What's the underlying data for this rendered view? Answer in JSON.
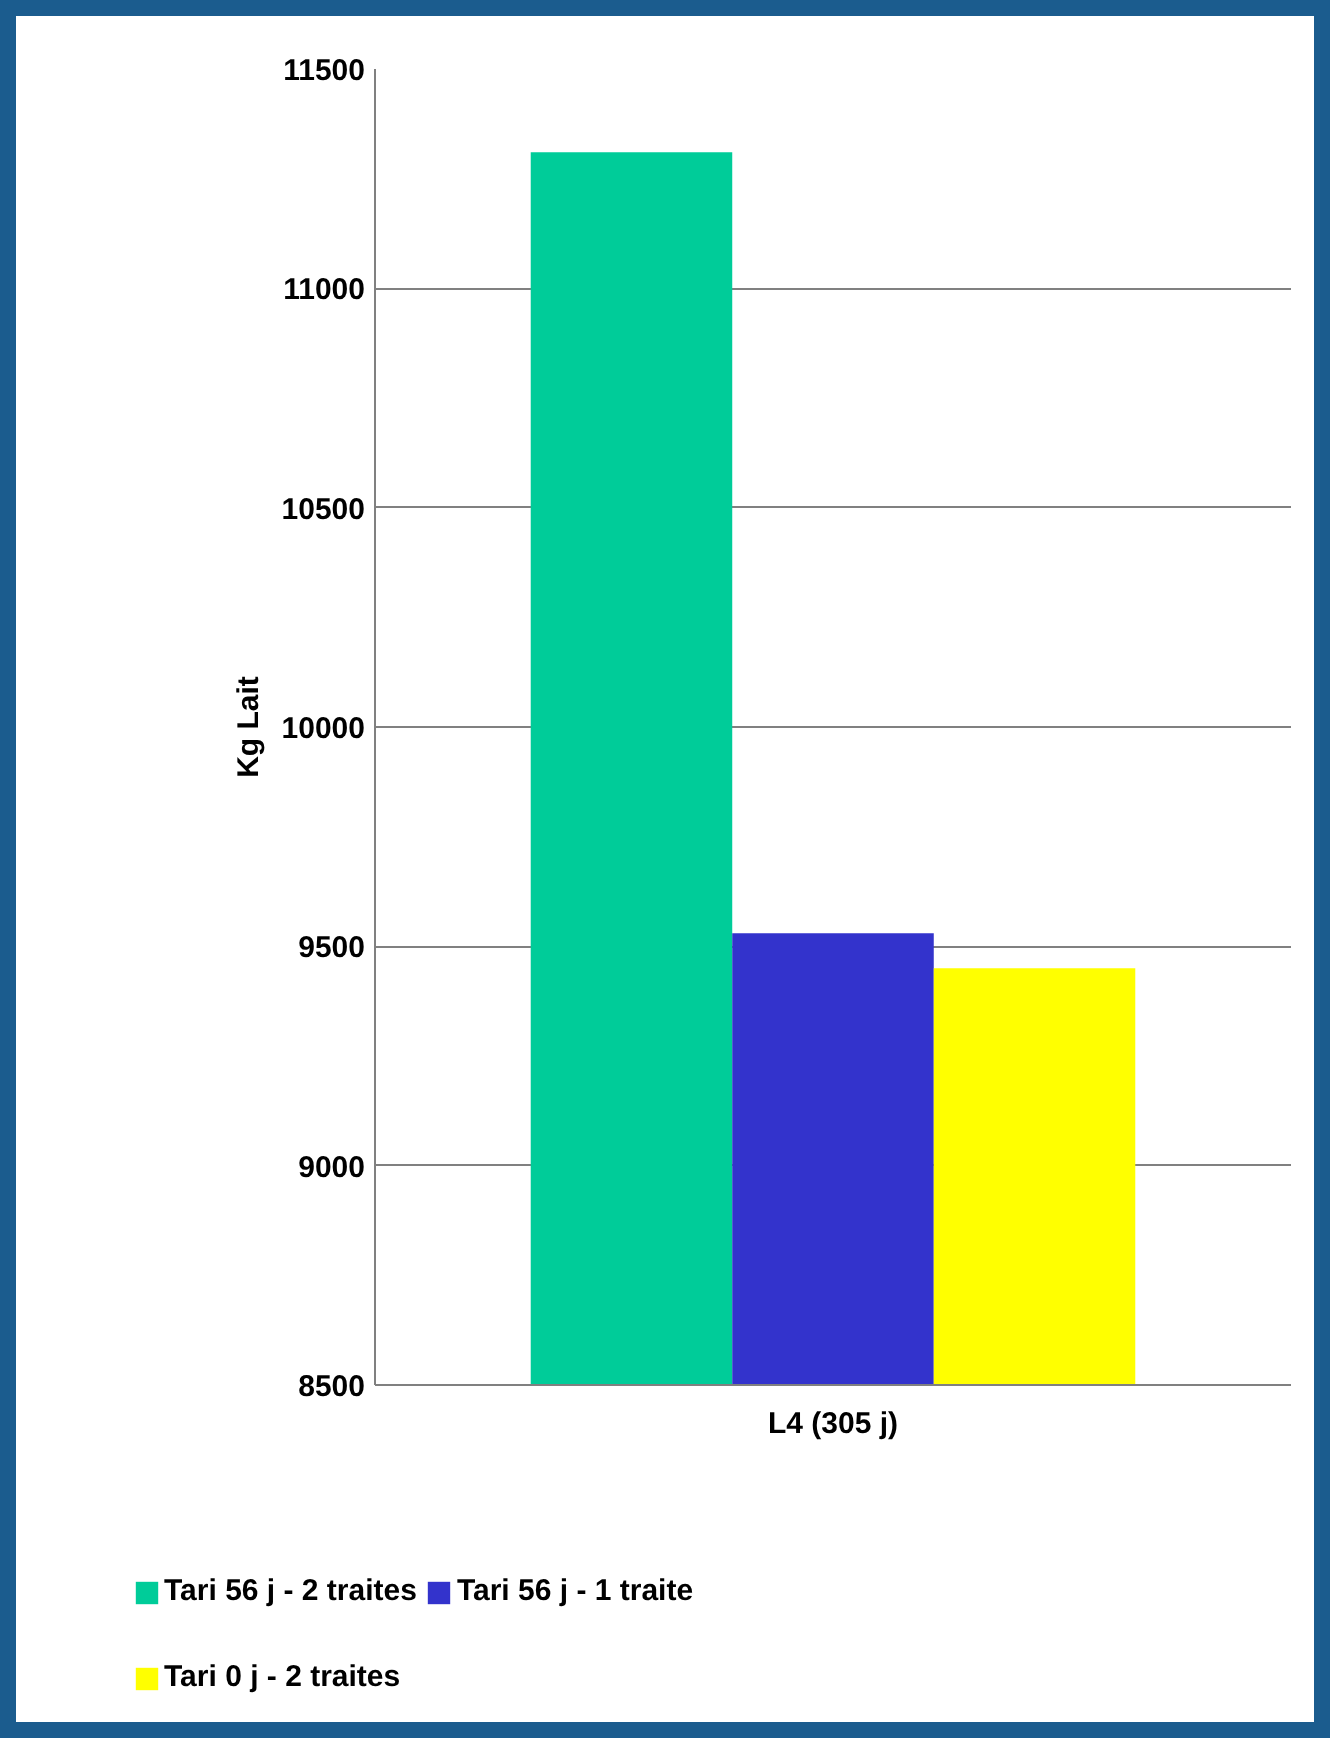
{
  "chart_data": {
    "type": "bar",
    "ylabel": "Kg Lait",
    "categories": [
      "L4 (305 j)"
    ],
    "series": [
      {
        "name": "Tari 56 j - 2 traites",
        "color": "#00cc99",
        "values": [
          11310
        ]
      },
      {
        "name": "Tari 56 j - 1 traite",
        "color": "#3333cc",
        "values": [
          9530
        ]
      },
      {
        "name": "Tari 0 j - 2 traites",
        "color": "#ffff00",
        "values": [
          9450
        ]
      }
    ],
    "ylim": [
      8500,
      11500
    ],
    "yticks": [
      8500,
      9000,
      9500,
      10000,
      10500,
      11000,
      11500
    ],
    "grid": "y",
    "legend": "bottom"
  }
}
